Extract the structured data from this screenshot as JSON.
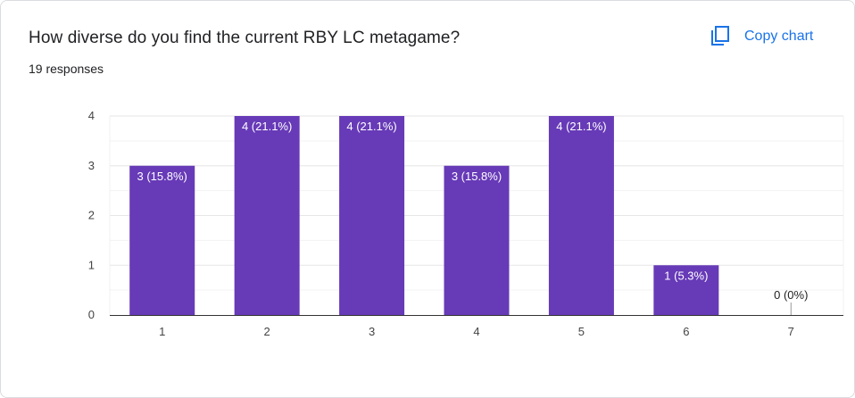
{
  "header": {
    "question": "How diverse do you find the current RBY LC metagame?",
    "responses": "19 responses",
    "copy_label": "Copy chart",
    "copy_icon": "copy-icon"
  },
  "colors": {
    "bar": "#673ab7",
    "accent": "#1a73e8",
    "grid": "#e6e6e6",
    "axis": "#333333"
  },
  "chart_data": {
    "type": "bar",
    "categories": [
      "1",
      "2",
      "3",
      "4",
      "5",
      "6",
      "7"
    ],
    "values": [
      3,
      4,
      4,
      3,
      4,
      1,
      0
    ],
    "data_labels": [
      "3 (15.8%)",
      "4 (21.1%)",
      "4 (21.1%)",
      "3 (15.8%)",
      "4 (21.1%)",
      "1 (5.3%)",
      "0 (0%)"
    ],
    "ylim": [
      0,
      4
    ],
    "yticks": [
      "0",
      "1",
      "2",
      "3",
      "4"
    ],
    "title": "",
    "xlabel": "",
    "ylabel": "",
    "grid": true
  }
}
